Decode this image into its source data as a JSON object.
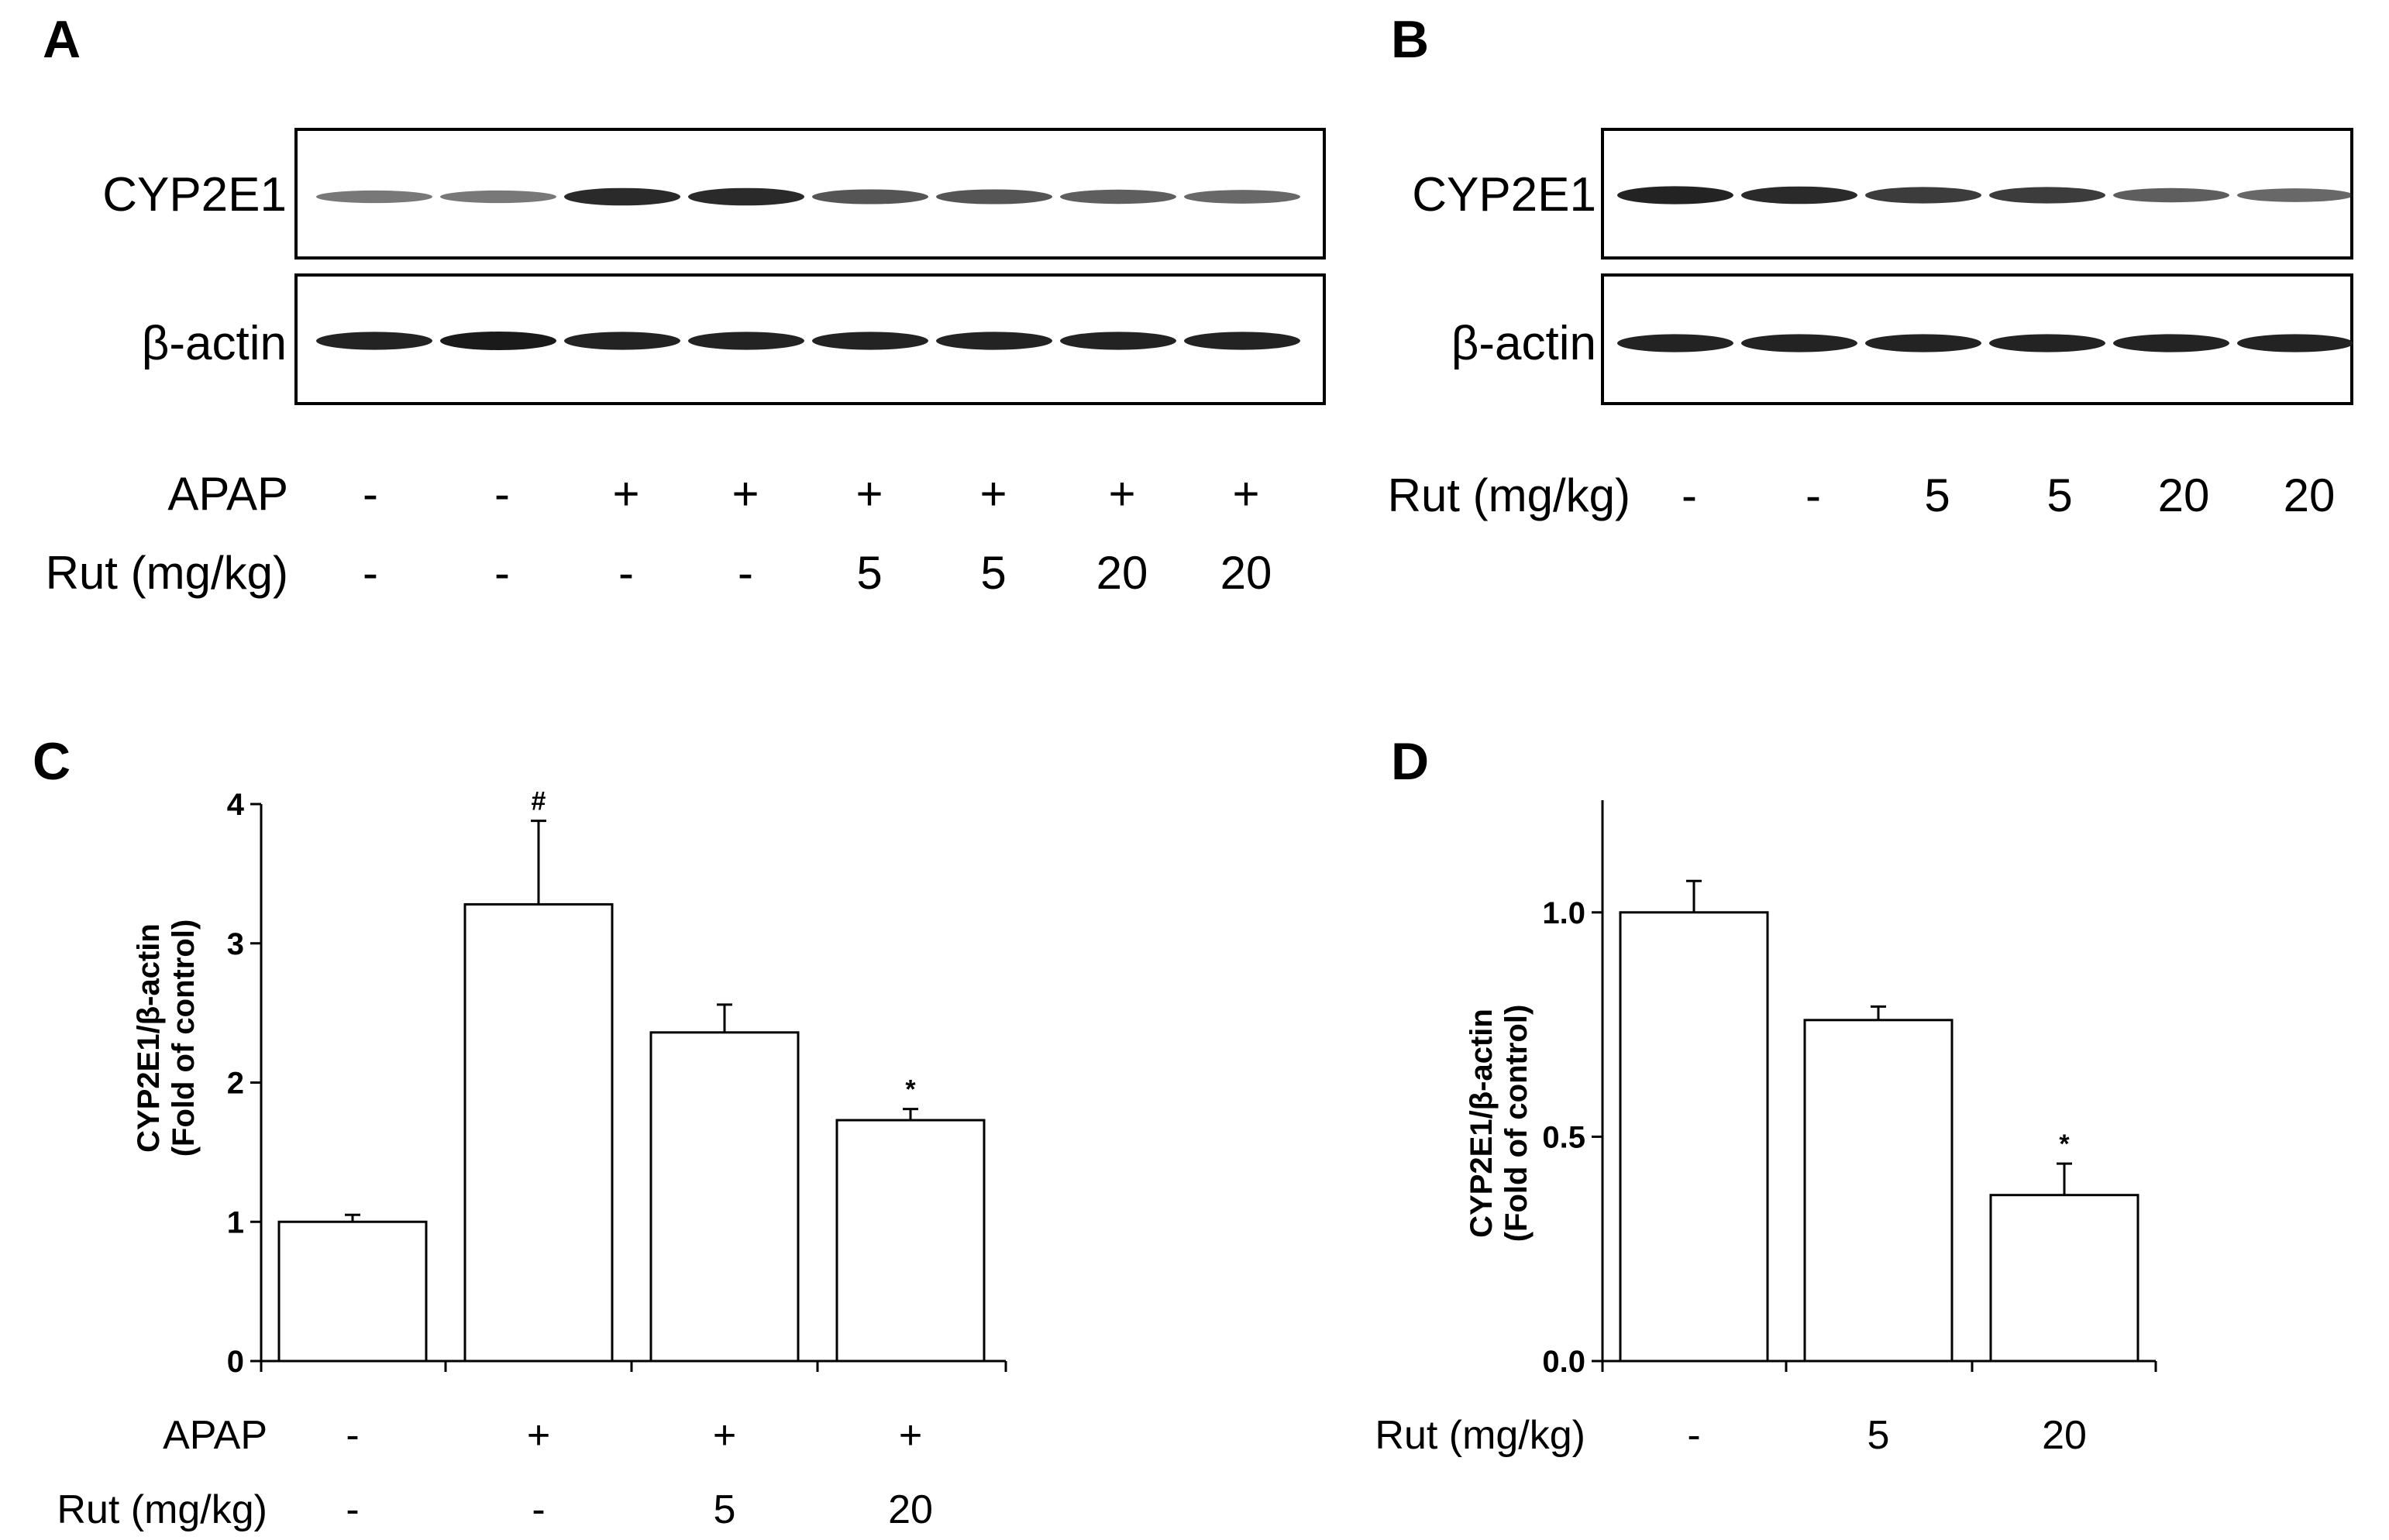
{
  "colors": {
    "ink": "#000000",
    "band": "#1a1a1a",
    "bar_fill": "#ffffff"
  },
  "panel_A": {
    "letter": "A",
    "blots": [
      "CYP2E1",
      "β-actin"
    ],
    "band_intensity": {
      "CYP2E1": [
        0.45,
        0.45,
        0.9,
        0.9,
        0.65,
        0.65,
        0.6,
        0.55
      ],
      "β-actin": [
        0.95,
        1.0,
        0.95,
        0.95,
        0.95,
        0.95,
        0.95,
        0.95
      ]
    },
    "rows": [
      {
        "label": "APAP",
        "values": [
          "-",
          "-",
          "+",
          "+",
          "+",
          "+",
          "+",
          "+"
        ]
      },
      {
        "label": "Rut (mg/kg)",
        "values": [
          "-",
          "-",
          "-",
          "-",
          "5",
          "5",
          "20",
          "20"
        ]
      }
    ]
  },
  "panel_B": {
    "letter": "B",
    "blots": [
      "CYP2E1",
      "β-actin"
    ],
    "band_intensity": {
      "CYP2E1": [
        0.95,
        0.9,
        0.8,
        0.8,
        0.6,
        0.55
      ],
      "β-actin": [
        0.95,
        0.95,
        0.95,
        0.95,
        0.95,
        0.95
      ]
    },
    "rows": [
      {
        "label": "Rut (mg/kg)",
        "values": [
          "-",
          "-",
          "5",
          "5",
          "20",
          "20"
        ]
      }
    ]
  },
  "chart_data": [
    {
      "panel": "C",
      "type": "bar",
      "categories": [
        "1",
        "2",
        "3",
        "4"
      ],
      "values": [
        1.0,
        3.28,
        2.36,
        1.73
      ],
      "errors": [
        0.05,
        0.6,
        0.2,
        0.08
      ],
      "annotations": [
        "",
        "#",
        "",
        "*"
      ],
      "ylabel": [
        "CYP2E1/β-actin",
        "(Fold of control)"
      ],
      "ylim": [
        0,
        4
      ],
      "yticks": [
        "0",
        "1",
        "2",
        "3",
        "4"
      ],
      "rows": [
        {
          "label": "APAP",
          "values": [
            "-",
            "+",
            "+",
            "+"
          ]
        },
        {
          "label": "Rut (mg/kg)",
          "values": [
            "-",
            "-",
            "5",
            "20"
          ]
        }
      ]
    },
    {
      "panel": "D",
      "type": "bar",
      "categories": [
        "1",
        "2",
        "3"
      ],
      "values": [
        1.0,
        0.76,
        0.37
      ],
      "errors": [
        0.07,
        0.03,
        0.07
      ],
      "annotations": [
        "",
        "",
        "*"
      ],
      "ylabel": [
        "CYP2E1/β-actin",
        "(Fold of control)"
      ],
      "ylim": [
        0,
        1.25
      ],
      "ytick_values": [
        0,
        0.5,
        1.0
      ],
      "yticks": [
        "0.0",
        "0.5",
        "1.0"
      ],
      "rows": [
        {
          "label": "Rut (mg/kg)",
          "values": [
            "-",
            "5",
            "20"
          ]
        }
      ]
    }
  ]
}
